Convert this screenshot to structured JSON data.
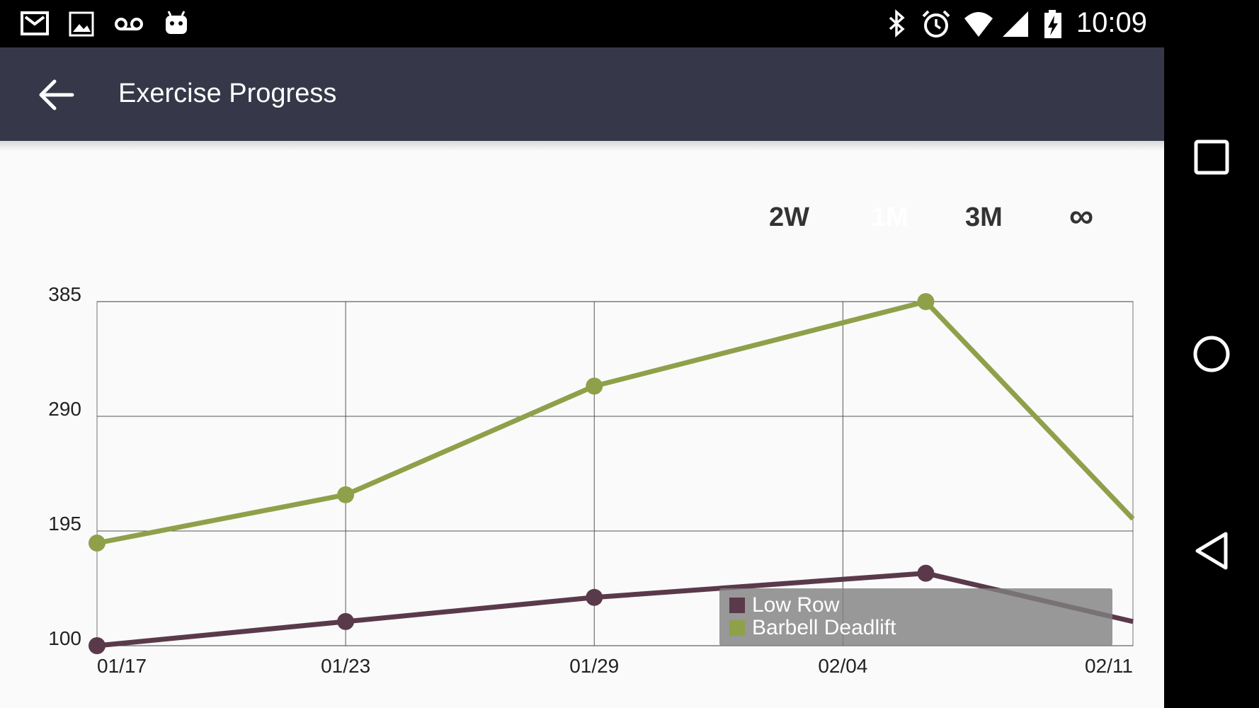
{
  "status_bar": {
    "time": "10:09",
    "icons": [
      "gmail-icon",
      "gallery-icon",
      "voicemail-icon",
      "android-icon",
      "bluetooth-icon",
      "alarm-icon",
      "wifi-icon",
      "signal-icon",
      "battery-charging-icon"
    ]
  },
  "app_bar": {
    "title": "Exercise Progress",
    "back_icon": "arrow-back-icon",
    "background": "#363748"
  },
  "range_tabs": [
    {
      "label": "2W",
      "selected": false
    },
    {
      "label": "1M",
      "selected": true
    },
    {
      "label": "3M",
      "selected": false
    },
    {
      "label": "∞",
      "selected": false
    }
  ],
  "chart_data": {
    "type": "line",
    "x": [
      "01/17",
      "01/23",
      "01/29",
      "02/04",
      "02/11"
    ],
    "x_tick_labels": [
      "01/17",
      "01/23",
      "01/29",
      "02/04",
      "02/11"
    ],
    "y_tick_labels": [
      "100",
      "195",
      "290",
      "385"
    ],
    "ylim": [
      100,
      385
    ],
    "grid": true,
    "legend_position": "bottom-right",
    "series": [
      {
        "name": "Low Row",
        "color": "#5a3a4a",
        "points": [
          {
            "x": "01/17",
            "y": 100
          },
          {
            "x": "01/23",
            "y": 120
          },
          {
            "x": "01/29",
            "y": 140
          },
          {
            "x": "02/06",
            "y": 160
          },
          {
            "x": "02/11",
            "y": 120
          }
        ]
      },
      {
        "name": "Barbell Deadlift",
        "color": "#8fa04a",
        "points": [
          {
            "x": "01/17",
            "y": 185
          },
          {
            "x": "01/23",
            "y": 225
          },
          {
            "x": "01/29",
            "y": 315
          },
          {
            "x": "02/06",
            "y": 385
          },
          {
            "x": "02/11",
            "y": 205
          }
        ]
      }
    ]
  },
  "nav_bar": {
    "icons": [
      "recents-square-icon",
      "home-circle-icon",
      "back-triangle-icon"
    ]
  }
}
